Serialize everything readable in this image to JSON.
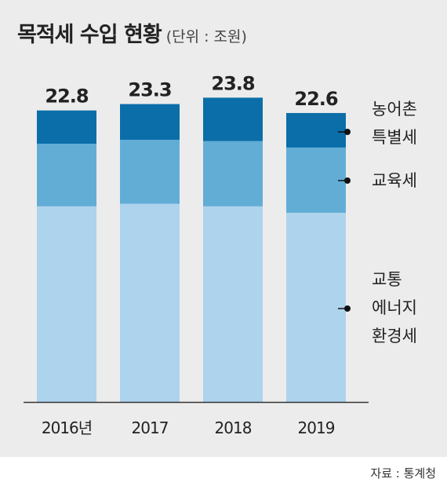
{
  "header": {
    "title": "목적세 수입 현황",
    "unit": "(단위 : 조원)"
  },
  "source": "자료 : 통계청",
  "chart_data": {
    "type": "bar",
    "stacked": true,
    "title": "목적세 수입 현황",
    "unit": "(단위 : 조원)",
    "categories": [
      "2016년",
      "2017",
      "2018",
      "2019"
    ],
    "totals": [
      22.8,
      23.3,
      23.8,
      22.6
    ],
    "series": [
      {
        "name": "교통 에너지 환경세",
        "values": [
          15.3,
          15.5,
          15.3,
          14.8
        ],
        "color": "#aed3ec"
      },
      {
        "name": "교육세",
        "values": [
          4.9,
          5.0,
          5.1,
          5.1
        ],
        "color": "#62add6"
      },
      {
        "name": "농어촌 특별세",
        "values": [
          2.6,
          2.8,
          3.4,
          2.7
        ],
        "color": "#0b6ea9"
      }
    ],
    "ylim": [
      0,
      24.5
    ],
    "grid": false,
    "legend": "right"
  }
}
